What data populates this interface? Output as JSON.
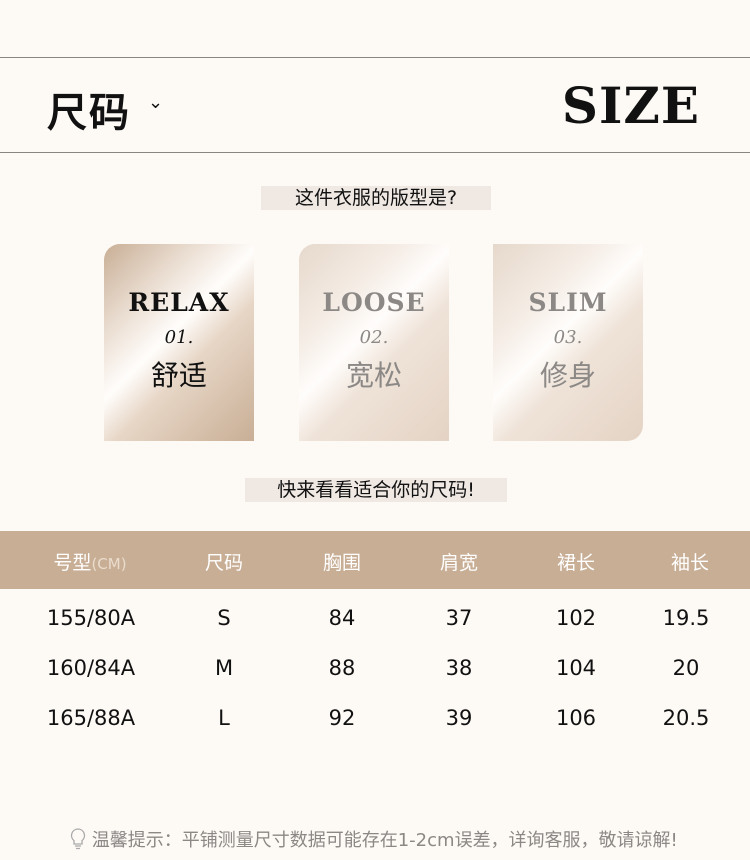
{
  "header": {
    "title": "尺码",
    "chevron": "⌄",
    "size_label": "SIZE"
  },
  "question": "这件衣服的版型是?",
  "fits": [
    {
      "en": "RELAX",
      "num": "01.",
      "zh": "舒适",
      "selected": true
    },
    {
      "en": "LOOSE",
      "num": "02.",
      "zh": "宽松",
      "selected": false
    },
    {
      "en": "SLIM",
      "num": "03.",
      "zh": "修身",
      "selected": false
    }
  ],
  "prompt": "快来看看适合你的尺码!",
  "table": {
    "headers": [
      "号型",
      "尺码",
      "胸围",
      "肩宽",
      "裙长",
      "袖长"
    ],
    "unit": "(CM)",
    "rows": [
      [
        "155/80A",
        "S",
        "84",
        "37",
        "102",
        "19.5"
      ],
      [
        "160/84A",
        "M",
        "88",
        "38",
        "104",
        "20"
      ],
      [
        "165/88A",
        "L",
        "92",
        "39",
        "106",
        "20.5"
      ]
    ]
  },
  "tip": "温馨提示：平铺测量尺寸数据可能存在1-2cm误差，详询客服，敬请谅解!",
  "colors": {
    "accent": "#c8ae95",
    "background": "#fdf9f5"
  }
}
